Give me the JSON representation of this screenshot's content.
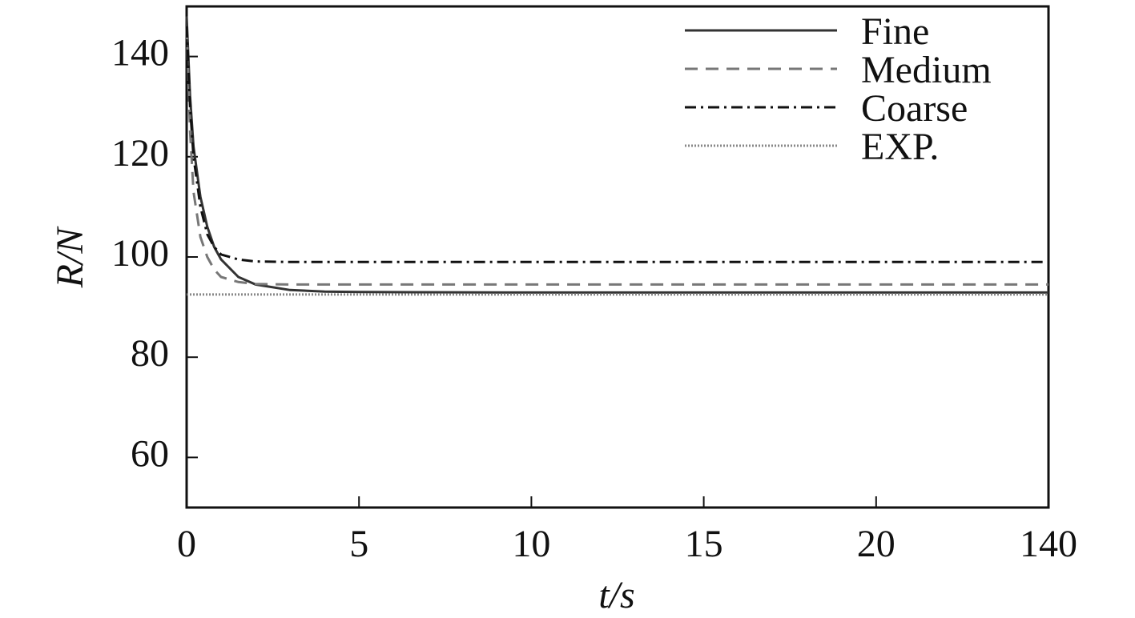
{
  "chart_data": {
    "type": "line",
    "x_label": "t/s",
    "y_label": "R/N",
    "xlim": [
      0,
      140
    ],
    "xticks": [
      0,
      5,
      10,
      15,
      20,
      140
    ],
    "ylim": [
      50,
      150
    ],
    "yticks": [
      60,
      80,
      100,
      120,
      140
    ],
    "x": [
      0,
      0.1,
      0.2,
      0.4,
      0.6,
      0.8,
      1,
      1.5,
      2,
      3,
      4,
      5,
      10,
      20,
      140
    ],
    "legend": "upper right",
    "series": [
      {
        "name": "Fine",
        "color": "#333333",
        "style": "solid",
        "values": [
          148,
          132,
          122,
          112,
          106,
          102,
          99.5,
          96,
          94.5,
          93.4,
          93.1,
          93,
          92.9,
          92.9,
          92.9
        ]
      },
      {
        "name": "Medium",
        "color": "#777777",
        "style": "dashed",
        "values": [
          146,
          125,
          113,
          104,
          100,
          97.5,
          96,
          95,
          94.6,
          94.5,
          94.5,
          94.5,
          94.5,
          94.5,
          94.5
        ]
      },
      {
        "name": "Coarse",
        "color": "#111111",
        "style": "dashdot",
        "values": [
          146,
          130,
          120,
          110,
          104.5,
          102,
          100.5,
          99.5,
          99.1,
          99,
          99,
          99,
          99,
          99,
          99
        ]
      },
      {
        "name": "EXP.",
        "color": "#888888",
        "style": "dotted",
        "values": [
          92.5,
          92.5,
          92.5,
          92.5,
          92.5,
          92.5,
          92.5,
          92.5,
          92.5,
          92.5,
          92.5,
          92.5,
          92.5,
          92.5,
          92.5
        ]
      }
    ]
  }
}
